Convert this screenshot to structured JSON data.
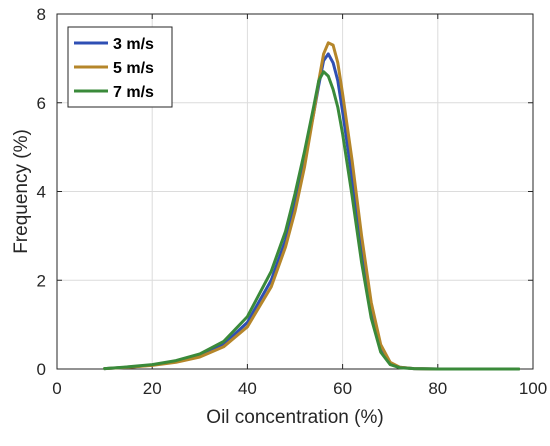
{
  "chart_data": {
    "type": "line",
    "title": "",
    "xlabel": "Oil concentration (%)",
    "ylabel": "Frequency (%)",
    "xlim": [
      0,
      100
    ],
    "ylim": [
      0,
      8
    ],
    "xticks": [
      0,
      20,
      40,
      60,
      80,
      100
    ],
    "yticks": [
      0,
      2,
      4,
      6,
      8
    ],
    "grid": true,
    "legend_position": "top-left",
    "series": [
      {
        "name": "3 m/s",
        "color": "#2f4fb4",
        "x": [
          10,
          15,
          20,
          25,
          30,
          35,
          40,
          45,
          48,
          50,
          52,
          54,
          55,
          56,
          57,
          58,
          59,
          60,
          62,
          64,
          66,
          68,
          70,
          72,
          75,
          80,
          90,
          97
        ],
        "y": [
          0.01,
          0.04,
          0.09,
          0.17,
          0.3,
          0.55,
          1.05,
          2.0,
          2.9,
          3.7,
          4.7,
          5.8,
          6.4,
          6.95,
          7.1,
          6.9,
          6.5,
          5.8,
          4.3,
          2.7,
          1.3,
          0.45,
          0.12,
          0.04,
          0.01,
          0.0,
          0.0,
          0.0
        ]
      },
      {
        "name": "5 m/s",
        "color": "#b5862a",
        "x": [
          10,
          15,
          20,
          25,
          30,
          35,
          40,
          45,
          48,
          50,
          52,
          54,
          55,
          56,
          57,
          58,
          59,
          60,
          62,
          64,
          66,
          68,
          70,
          72,
          75,
          80,
          90,
          97
        ],
        "y": [
          0.01,
          0.04,
          0.08,
          0.15,
          0.27,
          0.5,
          0.95,
          1.85,
          2.75,
          3.55,
          4.55,
          5.8,
          6.5,
          7.1,
          7.35,
          7.3,
          6.9,
          6.2,
          4.7,
          3.0,
          1.5,
          0.55,
          0.15,
          0.04,
          0.01,
          0.0,
          0.0,
          0.0
        ]
      },
      {
        "name": "7 m/s",
        "color": "#3a8a3a",
        "x": [
          10,
          15,
          20,
          25,
          30,
          35,
          40,
          45,
          48,
          50,
          52,
          54,
          55,
          56,
          57,
          58,
          59,
          60,
          62,
          64,
          66,
          68,
          70,
          72,
          75,
          80,
          90,
          97
        ],
        "y": [
          0.01,
          0.05,
          0.1,
          0.19,
          0.34,
          0.62,
          1.18,
          2.2,
          3.1,
          3.95,
          4.9,
          5.95,
          6.5,
          6.7,
          6.6,
          6.3,
          5.9,
          5.3,
          3.9,
          2.4,
          1.15,
          0.38,
          0.1,
          0.03,
          0.01,
          0.0,
          0.0,
          0.0
        ]
      }
    ]
  }
}
